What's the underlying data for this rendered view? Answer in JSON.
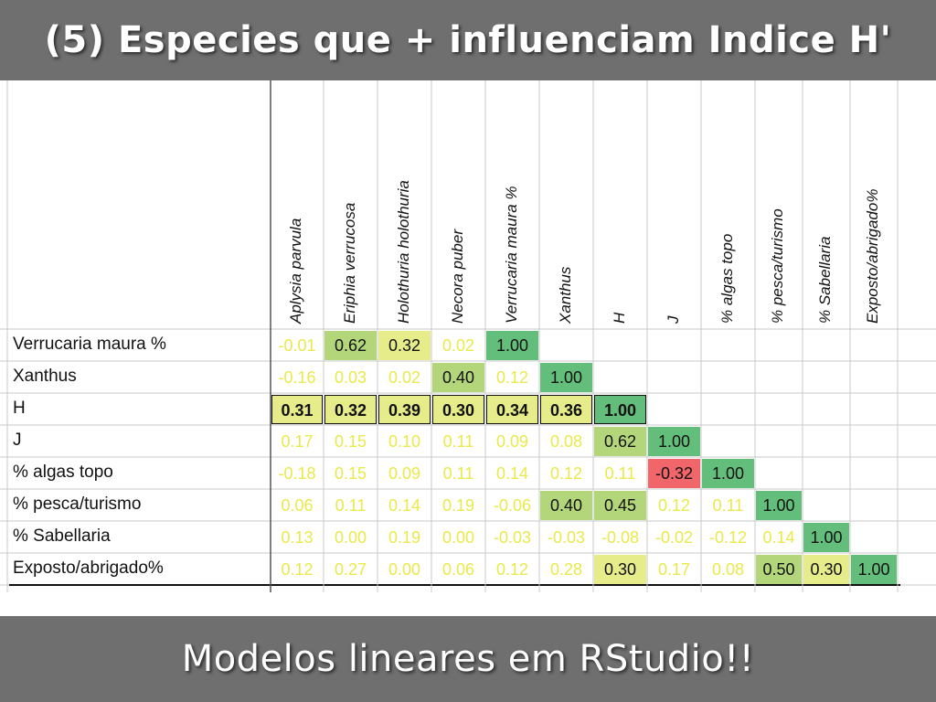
{
  "slide": {
    "title": "(5) Especies que + influenciam Indice H'",
    "caption": "Modelos lineares em RStudio!!"
  },
  "table": {
    "columns": [
      "Aplysia parvula",
      "Eriphia verrucosa",
      "Holothuria holothuria",
      "Necora puber",
      "Verrucaria maura %",
      "Xanthus",
      "H",
      "J",
      "% algas topo",
      "% pesca/turismo",
      "% Sabellaria",
      "Exposto/abrigado%"
    ],
    "rows": [
      {
        "label": "Verrucaria maura %",
        "values": [
          "-0.01",
          "0.62",
          "0.32",
          "0.02",
          "1.00"
        ]
      },
      {
        "label": "Xanthus",
        "values": [
          "-0.16",
          "0.03",
          "0.02",
          "0.40",
          "0.12",
          "1.00"
        ]
      },
      {
        "label": "H",
        "values": [
          "0.31",
          "0.32",
          "0.39",
          "0.30",
          "0.34",
          "0.36",
          "1.00"
        ]
      },
      {
        "label": "J",
        "values": [
          "0.17",
          "0.15",
          "0.10",
          "0.11",
          "0.09",
          "0.08",
          "0.62",
          "1.00"
        ]
      },
      {
        "label": "% algas topo",
        "values": [
          "-0.18",
          "0.15",
          "0.09",
          "0.11",
          "0.14",
          "0.12",
          "0.11",
          "-0.32",
          "1.00"
        ]
      },
      {
        "label": "% pesca/turismo",
        "values": [
          "0.06",
          "0.11",
          "0.14",
          "0.19",
          "-0.06",
          "0.40",
          "0.45",
          "0.12",
          "0.11",
          "1.00"
        ]
      },
      {
        "label": "% Sabellaria",
        "values": [
          "0.13",
          "0.00",
          "0.19",
          "0.00",
          "-0.03",
          "-0.03",
          "-0.08",
          "-0.02",
          "-0.12",
          "0.14",
          "1.00"
        ]
      },
      {
        "label": "Exposto/abrigado%",
        "values": [
          "0.12",
          "0.27",
          "0.00",
          "0.06",
          "0.12",
          "0.28",
          "0.30",
          "0.17",
          "0.08",
          "0.50",
          "0.30",
          "1.00"
        ]
      }
    ],
    "highlighted_row": "H",
    "colors": {
      "pale_text": "#e9e94a",
      "pale_fill": "#ffffff",
      "weak_fill": "#e6ec8a",
      "mid_fill": "#b4d67a",
      "strong_fill": "#63be7b",
      "negative_fill": "#f0666a",
      "grid_line": "#c8c8c8",
      "header_fill": "#6f6f6f"
    }
  }
}
